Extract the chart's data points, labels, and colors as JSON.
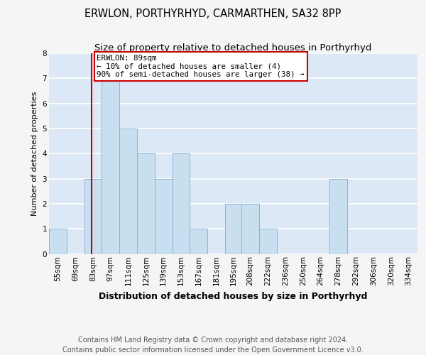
{
  "title": "ERWLON, PORTHYRHYD, CARMARTHEN, SA32 8PP",
  "subtitle": "Size of property relative to detached houses in Porthyrhyd",
  "xlabel": "Distribution of detached houses by size in Porthyrhyd",
  "ylabel": "Number of detached properties",
  "bin_labels": [
    "55sqm",
    "69sqm",
    "83sqm",
    "97sqm",
    "111sqm",
    "125sqm",
    "139sqm",
    "153sqm",
    "167sqm",
    "181sqm",
    "195sqm",
    "208sqm",
    "222sqm",
    "236sqm",
    "250sqm",
    "264sqm",
    "278sqm",
    "292sqm",
    "306sqm",
    "320sqm",
    "334sqm"
  ],
  "bar_heights": [
    1,
    0,
    3,
    7,
    5,
    4,
    3,
    4,
    1,
    0,
    2,
    2,
    1,
    0,
    0,
    0,
    3,
    0,
    0,
    0,
    0
  ],
  "bar_color": "#c8dff0",
  "bar_edge_color": "#8ab4d4",
  "background_color": "#dce8f5",
  "grid_color": "#ffffff",
  "annotation_text": "ERWLON: 89sqm\n← 10% of detached houses are smaller (4)\n90% of semi-detached houses are larger (38) →",
  "annotation_box_color": "#ffffff",
  "annotation_box_edge_color": "#cc0000",
  "vline_x": 89,
  "vline_color": "#cc0000",
  "bin_edges": [
    55,
    69,
    83,
    97,
    111,
    125,
    139,
    153,
    167,
    181,
    195,
    208,
    222,
    236,
    250,
    264,
    278,
    292,
    306,
    320,
    334,
    348
  ],
  "ylim": [
    0,
    8
  ],
  "yticks": [
    0,
    1,
    2,
    3,
    4,
    5,
    6,
    7,
    8
  ],
  "footer_text": "Contains HM Land Registry data © Crown copyright and database right 2024.\nContains public sector information licensed under the Open Government Licence v3.0.",
  "title_fontsize": 10.5,
  "subtitle_fontsize": 9.5,
  "xlabel_fontsize": 9,
  "ylabel_fontsize": 8,
  "tick_fontsize": 7.5,
  "footer_fontsize": 7,
  "fig_bg": "#f5f5f5"
}
